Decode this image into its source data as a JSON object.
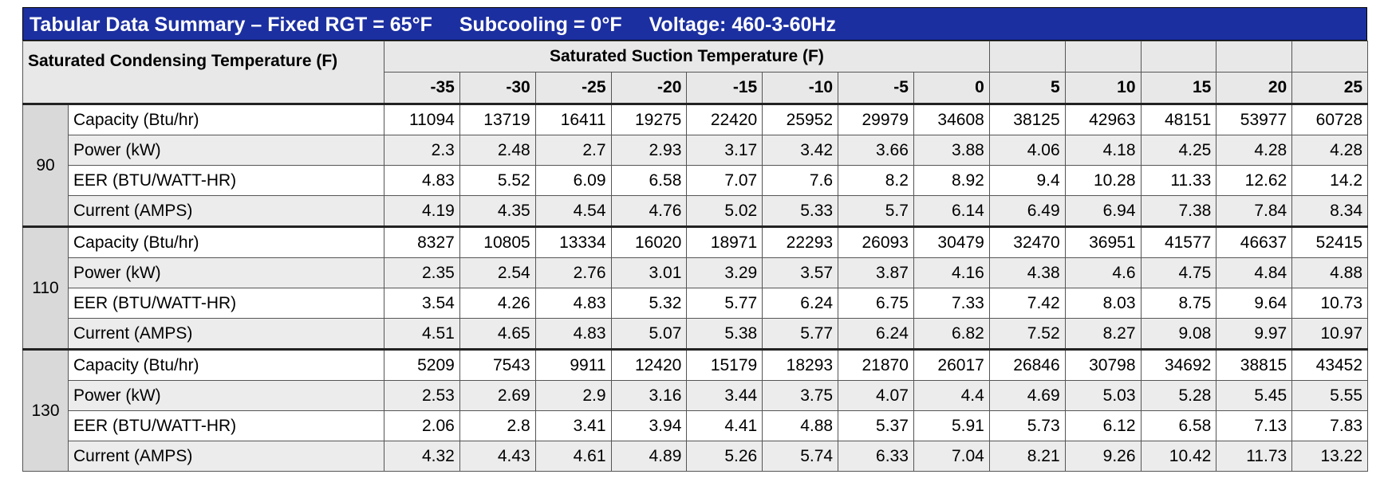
{
  "header": {
    "title": "Tabular Data Summary – Fixed RGT = 65°F",
    "subcooling": "Subcooling = 0°F",
    "voltage": "Voltage: 460-3-60Hz"
  },
  "table": {
    "row_header": "Saturated Condensing Temperature (F)",
    "column_group": "Saturated Suction Temperature (F)",
    "temperatures": [
      -35,
      -30,
      -25,
      -20,
      -15,
      -10,
      -5,
      0,
      5,
      10,
      15,
      20,
      25
    ],
    "groups": [
      {
        "condensing": "90",
        "rows": [
          {
            "label": "Capacity (Btu/hr)",
            "values": [
              11094,
              13719,
              16411,
              19275,
              22420,
              25952,
              29979,
              34608,
              38125,
              42963,
              48151,
              53977,
              60728
            ]
          },
          {
            "label": "Power (kW)",
            "values": [
              2.3,
              2.48,
              2.7,
              2.93,
              3.17,
              3.42,
              3.66,
              3.88,
              4.06,
              4.18,
              4.25,
              4.28,
              4.28
            ]
          },
          {
            "label": "EER (BTU/WATT-HR)",
            "values": [
              4.83,
              5.52,
              6.09,
              6.58,
              7.07,
              7.6,
              8.2,
              8.92,
              9.4,
              10.28,
              11.33,
              12.62,
              14.2
            ]
          },
          {
            "label": "Current (AMPS)",
            "values": [
              4.19,
              4.35,
              4.54,
              4.76,
              5.02,
              5.33,
              5.7,
              6.14,
              6.49,
              6.94,
              7.38,
              7.84,
              8.34
            ]
          }
        ]
      },
      {
        "condensing": "110",
        "rows": [
          {
            "label": "Capacity (Btu/hr)",
            "values": [
              8327,
              10805,
              13334,
              16020,
              18971,
              22293,
              26093,
              30479,
              32470,
              36951,
              41577,
              46637,
              52415
            ]
          },
          {
            "label": "Power (kW)",
            "values": [
              2.35,
              2.54,
              2.76,
              3.01,
              3.29,
              3.57,
              3.87,
              4.16,
              4.38,
              4.6,
              4.75,
              4.84,
              4.88
            ]
          },
          {
            "label": "EER (BTU/WATT-HR)",
            "values": [
              3.54,
              4.26,
              4.83,
              5.32,
              5.77,
              6.24,
              6.75,
              7.33,
              7.42,
              8.03,
              8.75,
              9.64,
              10.73
            ]
          },
          {
            "label": "Current (AMPS)",
            "values": [
              4.51,
              4.65,
              4.83,
              5.07,
              5.38,
              5.77,
              6.24,
              6.82,
              7.52,
              8.27,
              9.08,
              9.97,
              10.97
            ]
          }
        ]
      },
      {
        "condensing": "130",
        "rows": [
          {
            "label": "Capacity (Btu/hr)",
            "values": [
              5209,
              7543,
              9911,
              12420,
              15179,
              18293,
              21870,
              26017,
              26846,
              30798,
              34692,
              38815,
              43452
            ]
          },
          {
            "label": "Power (kW)",
            "values": [
              2.53,
              2.69,
              2.9,
              3.16,
              3.44,
              3.75,
              4.07,
              4.4,
              4.69,
              5.03,
              5.28,
              5.45,
              5.55
            ]
          },
          {
            "label": "EER (BTU/WATT-HR)",
            "values": [
              2.06,
              2.8,
              3.41,
              3.94,
              4.41,
              4.88,
              5.37,
              5.91,
              5.73,
              6.12,
              6.58,
              7.13,
              7.83
            ]
          },
          {
            "label": "Current (AMPS)",
            "values": [
              4.32,
              4.43,
              4.61,
              4.89,
              5.26,
              5.74,
              6.33,
              7.04,
              8.21,
              9.26,
              10.42,
              11.73,
              13.22
            ]
          }
        ]
      }
    ]
  }
}
